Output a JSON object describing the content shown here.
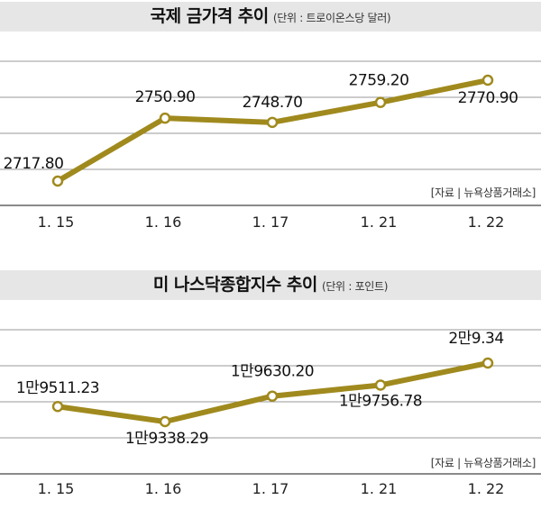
{
  "chart_data": [
    {
      "type": "line",
      "title": "국제 금가격 추이",
      "unit": "(단위 : 트로이온스당 달러)",
      "source": "[자료 | 뉴욕상품거래소]",
      "categories": [
        "1. 15",
        "1. 16",
        "1. 17",
        "1. 21",
        "1. 22"
      ],
      "series": [
        {
          "values": [
            2717.8,
            2750.9,
            2748.7,
            2759.2,
            2770.9
          ]
        }
      ],
      "data_labels": [
        "2717.80",
        "2750.90",
        "2748.70",
        "2759.20",
        "2770.90"
      ],
      "grid": true,
      "color": "#a08a1e"
    },
    {
      "type": "line",
      "title": "미 나스닥종합지수 추이",
      "unit": "(단위 : 포인트)",
      "source": "[자료 | 뉴욕상품거래소]",
      "categories": [
        "1. 15",
        "1. 16",
        "1. 17",
        "1. 21",
        "1. 22"
      ],
      "series": [
        {
          "values": [
            19511.23,
            19338.29,
            19630.2,
            19756.78,
            20009.34
          ]
        }
      ],
      "data_labels": [
        "1만9511.23",
        "1만9338.29",
        "1만9630.20",
        "1만9756.78",
        "2만9.34"
      ],
      "grid": true,
      "color": "#a08a1e"
    }
  ]
}
